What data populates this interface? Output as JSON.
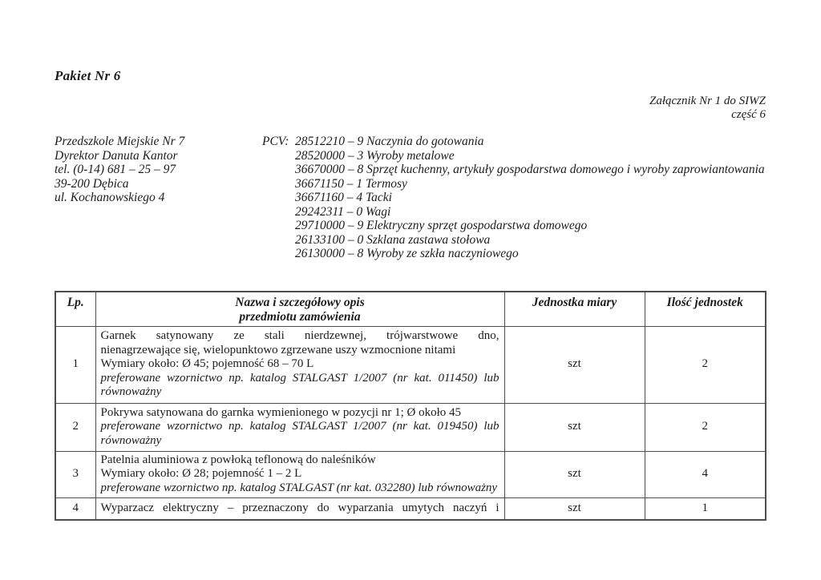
{
  "page": {
    "title": "Pakiet Nr 6",
    "attachment_line1": "Załącznik Nr 1 do SIWZ",
    "attachment_line2": "część 6"
  },
  "recipient": {
    "lines": [
      "Przedszkole Miejskie Nr 7",
      "Dyrektor Danuta Kantor",
      "tel. (0-14) 681 – 25 – 97",
      "39-200 Dębica",
      "ul. Kochanowskiego 4"
    ]
  },
  "pcv": {
    "label": "PCV:",
    "items": [
      "28512210 – 9 Naczynia do gotowania",
      "28520000 – 3 Wyroby metalowe",
      "36670000 – 8 Sprzęt kuchenny, artykuły gospodarstwa domowego i wyroby zaprowiantowania",
      "36671150 – 1 Termosy",
      "36671160 – 4 Tacki",
      "29242311 – 0 Wagi",
      "29710000 – 9 Elektryczny sprzęt gospodarstwa domowego",
      "26133100 – 0 Szklana zastawa stołowa",
      "26130000 – 8 Wyroby ze szkła naczyniowego"
    ]
  },
  "table": {
    "headers": {
      "lp": "Lp.",
      "name_line1": "Nazwa i szczegółowy opis",
      "name_line2": "przedmiotu zamówienia",
      "unit": "Jednostka miary",
      "qty": "Ilość jednostek"
    },
    "rows": [
      {
        "lp": "1",
        "desc": [
          {
            "text": "Garnek satynowany ze stali nierdzewnej, trójwarstwowe dno,",
            "italic": false,
            "justify": true
          },
          {
            "text": "nienagrzewające się, wielopunktowo zgrzewane uszy wzmocnione nitami",
            "italic": false,
            "justify": false
          },
          {
            "text": "Wymiary około: Ø 45; pojemność 68 – 70 L",
            "italic": false,
            "justify": false
          },
          {
            "text": "preferowane wzornictwo np. katalog STALGAST 1/2007 (nr kat. 011450) lub",
            "italic": true,
            "justify": true
          },
          {
            "text": "równoważny",
            "italic": true,
            "justify": false
          }
        ],
        "unit": "szt",
        "qty": "2"
      },
      {
        "lp": "2",
        "desc": [
          {
            "text": "Pokrywa satynowana do garnka wymienionego w pozycji nr 1; Ø około 45",
            "italic": false,
            "justify": false
          },
          {
            "text": "preferowane wzornictwo np. katalog STALGAST 1/2007 (nr kat. 019450) lub",
            "italic": true,
            "justify": true
          },
          {
            "text": "równoważny",
            "italic": true,
            "justify": false
          }
        ],
        "unit": "szt",
        "qty": "2"
      },
      {
        "lp": "3",
        "desc": [
          {
            "text": "Patelnia aluminiowa z powłoką teflonową do naleśników",
            "italic": false,
            "justify": false
          },
          {
            "text": "Wymiary około: Ø 28; pojemność 1 – 2 L",
            "italic": false,
            "justify": false
          },
          {
            "text": "preferowane wzornictwo np. katalog STALGAST (nr kat. 032280) lub równoważny",
            "italic": true,
            "justify": false
          }
        ],
        "unit": "szt",
        "qty": "4"
      },
      {
        "lp": "4",
        "desc": [
          {
            "text": "Wyparzacz elektryczny – przeznaczony do wyparzania umytych naczyń i",
            "italic": false,
            "justify": true
          }
        ],
        "unit": "szt",
        "qty": "1"
      }
    ]
  }
}
